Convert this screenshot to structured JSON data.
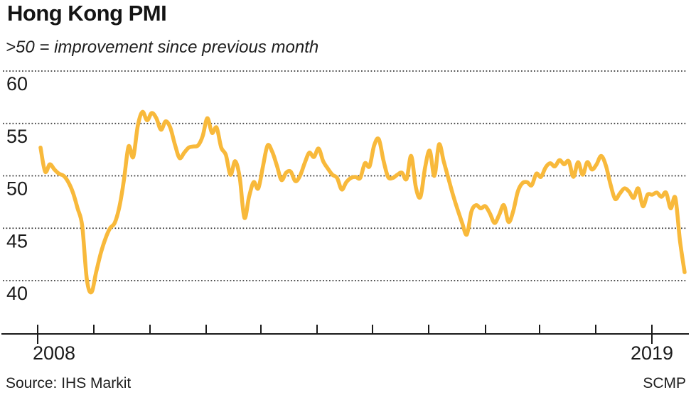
{
  "header": {
    "title": "Hong Kong PMI",
    "subtitle": ">50 = improvement since previous month"
  },
  "footer": {
    "source": "Source: IHS Markit",
    "credit": "SCMP"
  },
  "colors": {
    "line": "#F8B93B",
    "grid": "#3b3b3b",
    "axis": "#1a1a1a",
    "text": "#1a1a1a"
  },
  "chart_data": {
    "type": "line",
    "title": "Hong Kong PMI",
    "subtitle": ">50 = improvement since previous month",
    "ylabel": "",
    "xlabel": "",
    "y_ticks": [
      60,
      55,
      50,
      45,
      40
    ],
    "ylim": [
      37.5,
      61.5
    ],
    "grid": "horizontal-dotted",
    "legend": "none",
    "x_tick_years": [
      2008,
      2009,
      2010,
      2011,
      2012,
      2013,
      2014,
      2015,
      2016,
      2017,
      2018,
      2019
    ],
    "x_tick_labels_shown": [
      "2008",
      "2019"
    ],
    "series": [
      {
        "name": "Hong Kong PMI",
        "color": "#F8B93B",
        "start": "2008-01",
        "frequency": "monthly",
        "values": [
          52.7,
          50.4,
          51.1,
          50.6,
          50.2,
          50.0,
          49.4,
          48.4,
          46.9,
          45.2,
          40.1,
          38.9,
          40.8,
          42.6,
          44.0,
          45.0,
          45.5,
          47.0,
          49.6,
          52.8,
          51.8,
          54.8,
          56.1,
          55.3,
          56.0,
          55.5,
          54.4,
          55.2,
          54.6,
          53.0,
          51.7,
          52.2,
          52.7,
          52.8,
          52.9,
          53.8,
          55.5,
          54.1,
          54.6,
          52.7,
          52.0,
          50.1,
          51.4,
          49.8,
          46.0,
          48.0,
          49.4,
          48.8,
          50.9,
          52.9,
          52.3,
          51.0,
          49.6,
          50.3,
          50.4,
          49.5,
          50.0,
          51.2,
          52.2,
          51.8,
          52.6,
          51.4,
          50.7,
          50.1,
          49.8,
          48.7,
          49.4,
          49.8,
          49.9,
          49.8,
          51.2,
          50.9,
          52.9,
          53.5,
          51.5,
          49.9,
          49.8,
          50.1,
          50.3,
          49.7,
          51.9,
          48.9,
          48.0,
          50.8,
          52.4,
          50.0,
          53.0,
          51.4,
          49.8,
          48.2,
          46.8,
          45.5,
          44.4,
          46.6,
          47.2,
          46.9,
          47.1,
          46.4,
          45.5,
          46.3,
          47.2,
          45.6,
          46.6,
          48.5,
          49.3,
          49.4,
          49.1,
          50.2,
          49.9,
          50.8,
          51.2,
          50.9,
          51.5,
          51.1,
          51.4,
          49.9,
          51.3,
          50.1,
          51.3,
          50.6,
          51.1,
          51.9,
          51.0,
          49.2,
          47.8,
          48.3,
          48.8,
          48.5,
          47.9,
          48.8,
          47.1,
          48.2,
          48.2,
          48.4,
          48.0,
          48.4,
          46.9,
          47.9,
          43.8,
          40.8
        ]
      }
    ]
  }
}
